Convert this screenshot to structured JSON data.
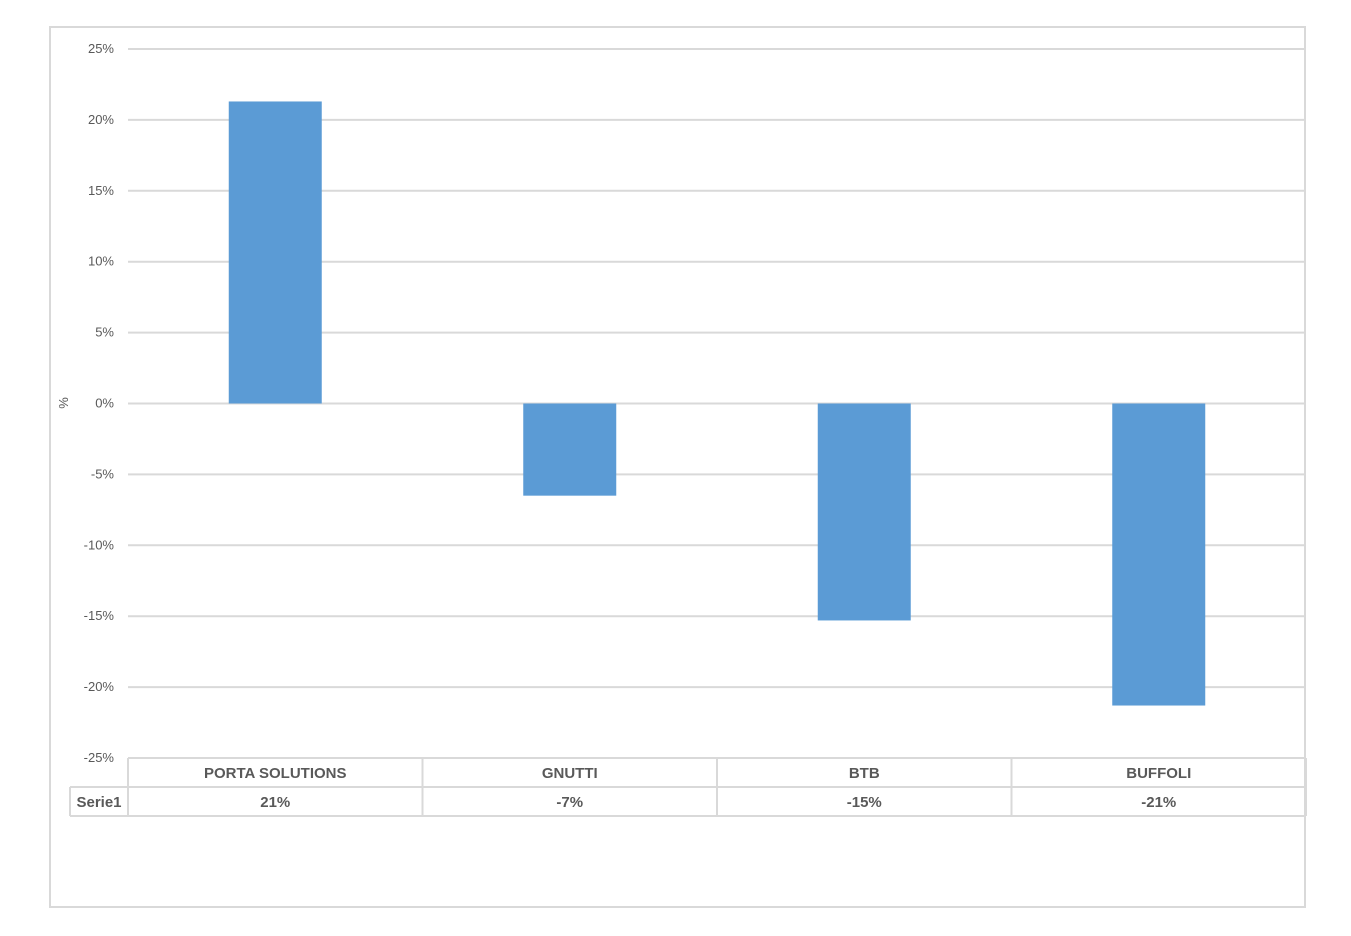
{
  "chart_data": {
    "type": "bar",
    "categories": [
      "PORTA SOLUTIONS",
      "GNUTTI",
      "BTB",
      "BUFFOLI"
    ],
    "series": [
      {
        "name": "Serie1",
        "values": [
          21.3,
          -6.5,
          -15.3,
          -21.3
        ],
        "value_labels": [
          "21%",
          "-7%",
          "-15%",
          "-21%"
        ]
      }
    ],
    "ylabel": "%",
    "ylim": [
      -25,
      25
    ],
    "yticks": [
      25,
      20,
      15,
      10,
      5,
      0,
      -5,
      -10,
      -15,
      -20,
      -25
    ],
    "ytick_labels": [
      "25%",
      "20%",
      "15%",
      "10%",
      "5%",
      "0%",
      "-5%",
      "-10%",
      "-15%",
      "-20%",
      "-25%"
    ],
    "grid": true,
    "data_table": true,
    "bar_color": "#5B9BD5",
    "grid_color": "#d9d9d9"
  }
}
